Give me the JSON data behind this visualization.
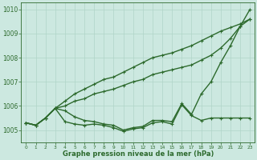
{
  "x": [
    0,
    1,
    2,
    3,
    4,
    5,
    6,
    7,
    8,
    9,
    10,
    11,
    12,
    13,
    14,
    15,
    16,
    17,
    18,
    19,
    20,
    21,
    22,
    23
  ],
  "lines": [
    [
      1005.3,
      1005.2,
      1005.5,
      1005.9,
      1005.8,
      1005.55,
      1005.4,
      1005.35,
      1005.25,
      1005.2,
      1005.0,
      1005.1,
      1005.15,
      1005.4,
      1005.4,
      1005.35,
      1006.1,
      1005.65,
      1006.5,
      1007.0,
      1007.8,
      1008.5,
      1009.3,
      1010.0
    ],
    [
      1005.3,
      1005.2,
      1005.5,
      1005.9,
      1006.0,
      1006.2,
      1006.3,
      1006.5,
      1006.6,
      1006.7,
      1006.85,
      1007.0,
      1007.1,
      1007.3,
      1007.4,
      1007.5,
      1007.6,
      1007.7,
      1007.9,
      1008.1,
      1008.4,
      1008.8,
      1009.3,
      1009.6
    ],
    [
      1005.3,
      1005.2,
      1005.5,
      1005.9,
      1006.2,
      1006.5,
      1006.7,
      1006.9,
      1007.1,
      1007.2,
      1007.4,
      1007.6,
      1007.8,
      1008.0,
      1008.1,
      1008.2,
      1008.35,
      1008.5,
      1008.7,
      1008.9,
      1009.1,
      1009.25,
      1009.4,
      1009.6
    ],
    [
      1005.3,
      1005.2,
      1005.5,
      1005.9,
      1005.35,
      1005.25,
      1005.2,
      1005.25,
      1005.2,
      1005.1,
      1004.95,
      1005.05,
      1005.1,
      1005.3,
      1005.35,
      1005.25,
      1006.05,
      1005.6,
      1005.4,
      1005.5,
      1005.5,
      1005.5,
      1005.5,
      1005.5
    ]
  ],
  "ylim": [
    1004.5,
    1010.3
  ],
  "yticks": [
    1005,
    1006,
    1007,
    1008,
    1009,
    1010
  ],
  "ytick_labels": [
    "1005",
    "1006",
    "1007",
    "1008",
    "1009",
    "1010"
  ],
  "xlim": [
    -0.5,
    23.5
  ],
  "xlabel": "Graphe pression niveau de la mer (hPa)",
  "line_color": "#2d6a2d",
  "bg_color": "#cce8e0",
  "grid_color": "#b0d4c8",
  "marker": "+",
  "linewidth": 1.0,
  "markersize": 3.5,
  "top_ytick": "1010"
}
